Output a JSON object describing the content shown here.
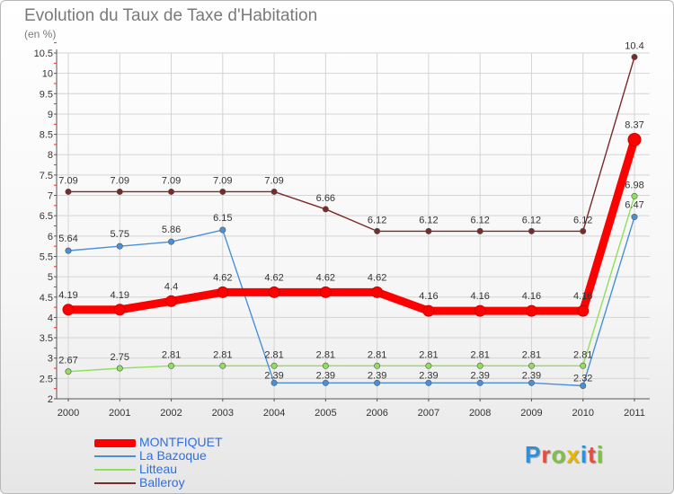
{
  "header": {
    "title": "Evolution du Taux de Taxe d'Habitation",
    "subtitle": "(en %)"
  },
  "chart_data": {
    "type": "line",
    "title": "Evolution du Taux de Taxe d'Habitation",
    "ylabel": "(en %)",
    "xlabel": "",
    "x": [
      "2000",
      "2001",
      "2002",
      "2003",
      "2004",
      "2005",
      "2006",
      "2007",
      "2008",
      "2009",
      "2010",
      "2011"
    ],
    "ylim": [
      2,
      10.5
    ],
    "yticks": [
      "2",
      "2.5",
      "3",
      "3.5",
      "4",
      "4.5",
      "5",
      "5.5",
      "6",
      "6.5",
      "7",
      "7.5",
      "8",
      "8.5",
      "9",
      "9.5",
      "10",
      "10.5"
    ],
    "series": [
      {
        "name": "MONTFIQUET",
        "color": "#ff0000",
        "values": [
          4.19,
          4.19,
          4.4,
          4.62,
          4.62,
          4.62,
          4.62,
          4.16,
          4.16,
          4.16,
          4.16,
          8.37
        ],
        "labels": [
          "4.19",
          "4.19",
          "4.4",
          "4.62",
          "4.62",
          "4.62",
          "4.62",
          "4.16",
          "4.16",
          "4.16",
          "4.16",
          "8.37"
        ]
      },
      {
        "name": "La Bazoque",
        "color": "#4a90d9",
        "values": [
          5.64,
          5.75,
          5.86,
          6.15,
          2.39,
          2.39,
          2.39,
          2.39,
          2.39,
          2.39,
          2.32,
          6.47
        ],
        "labels": [
          "5.64",
          "5.75",
          "5.86",
          "6.15",
          "2.39",
          "2.39",
          "2.39",
          "2.39",
          "2.39",
          "2.39",
          "2.32",
          "6.47"
        ]
      },
      {
        "name": "Litteau",
        "color": "#8ee05a",
        "values": [
          2.67,
          2.75,
          2.81,
          2.81,
          2.81,
          2.81,
          2.81,
          2.81,
          2.81,
          2.81,
          2.81,
          6.98
        ],
        "labels": [
          "2.67",
          "2.75",
          "2.81",
          "2.81",
          "2.81",
          "2.81",
          "2.81",
          "2.81",
          "2.81",
          "2.81",
          "2.81",
          "6.98"
        ]
      },
      {
        "name": "Balleroy",
        "color": "#7a2a2a",
        "values": [
          7.09,
          7.09,
          7.09,
          7.09,
          7.09,
          6.66,
          6.12,
          6.12,
          6.12,
          6.12,
          6.12,
          10.4
        ],
        "labels": [
          "7.09",
          "7.09",
          "7.09",
          "7.09",
          "7.09",
          "6.66",
          "6.12",
          "6.12",
          "6.12",
          "6.12",
          "6.12",
          "10.4"
        ]
      }
    ],
    "legend_position": "bottom-left"
  },
  "logo": {
    "letters": [
      "P",
      "r",
      "o",
      "x",
      "i",
      "t",
      "i"
    ],
    "colors": [
      "#2f8fd8",
      "#e84c3d",
      "#7dc242",
      "#e8b800",
      "#2f8fd8",
      "#e84c3d",
      "#7dc242"
    ]
  }
}
